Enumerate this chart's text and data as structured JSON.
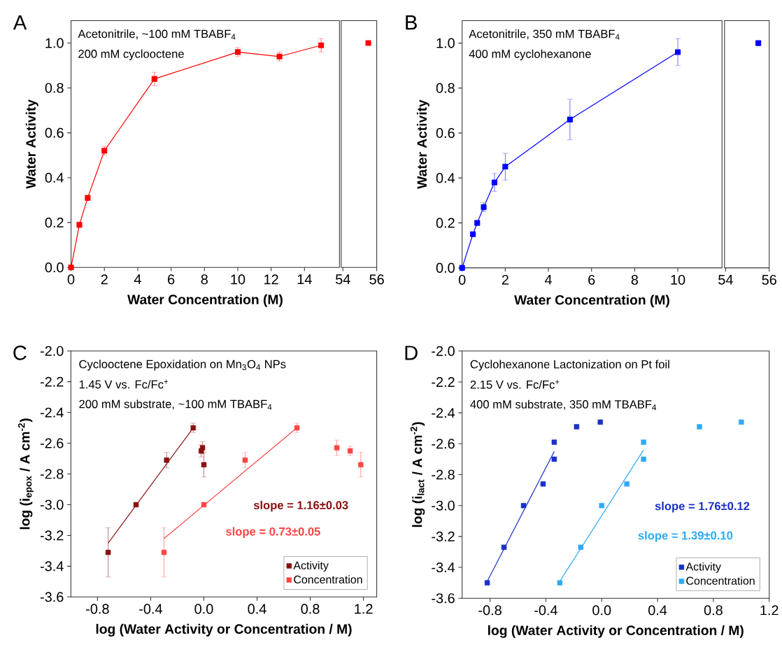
{
  "chart_data": [
    {
      "type": "line",
      "title": "A",
      "xlabel": "Water Concentration (M)",
      "ylabel": "Water Activity",
      "marker": "square",
      "grid": false,
      "xlim": [
        0,
        16.1
      ],
      "ylim": [
        0,
        1.1
      ],
      "xticks": [
        0,
        2,
        4,
        6,
        8,
        10,
        12,
        14
      ],
      "yticks": [
        {
          "value": 0,
          "label": "0.0"
        },
        0.2,
        0.4,
        0.6,
        0.8,
        {
          "value": 1,
          "label": "1.0"
        }
      ],
      "annotations": [
        "Acetonitrile, ~100 mM TBABF$_{4}$",
        "200 mM cyclooctene"
      ],
      "series": [
        {
          "color": "#ff0000",
          "x": [
            0,
            0.5,
            1,
            2,
            5,
            10,
            12.5,
            15
          ],
          "values": [
            0,
            0.19,
            0.31,
            0.52,
            0.84,
            0.96,
            0.94,
            0.99
          ],
          "errors": [
            null,
            null,
            0.01,
            0.02,
            0.03,
            0.02,
            0.02,
            0.03
          ]
        }
      ]
    },
    {
      "type": "line",
      "marker": "square",
      "grid": false,
      "tick_labels": "x",
      "xlim": [
        53.9,
        56
      ],
      "ylim": [
        0,
        1.1
      ],
      "xticks": [
        54,
        56
      ],
      "series": [
        {
          "color": "#ff0000",
          "x": [
            55.5
          ],
          "values": [
            1.0
          ]
        }
      ]
    },
    {
      "type": "line",
      "title": "B",
      "xlabel": "Water Concentration (M)",
      "ylabel": "Water Activity",
      "marker": "square",
      "grid": false,
      "xlim": [
        0,
        12.05
      ],
      "ylim": [
        0,
        1.1
      ],
      "xticks": [
        0,
        2,
        4,
        6,
        8,
        10
      ],
      "yticks": [
        {
          "value": 0,
          "label": "0.0"
        },
        0.2,
        0.4,
        0.6,
        0.8,
        {
          "value": 1,
          "label": "1.0"
        }
      ],
      "annotations": [
        "Acetonitrile, 350 mM TBABF$_{4}$",
        "400 mM cyclohexanone"
      ],
      "series": [
        {
          "color": "#0000ff",
          "x": [
            0,
            0.5,
            0.7,
            1,
            1.5,
            2,
            5,
            10
          ],
          "values": [
            0,
            0.15,
            0.2,
            0.27,
            0.38,
            0.45,
            0.66,
            0.96
          ],
          "errors": [
            null,
            null,
            null,
            0.02,
            0.04,
            0.06,
            0.09,
            0.06
          ]
        }
      ]
    },
    {
      "type": "line",
      "marker": "square",
      "grid": false,
      "tick_labels": "x",
      "xlim": [
        53.95,
        56
      ],
      "ylim": [
        0,
        1.1
      ],
      "xticks": [
        54,
        56
      ],
      "series": [
        {
          "color": "#0000ff",
          "x": [
            55.5
          ],
          "values": [
            1.0
          ]
        }
      ]
    },
    {
      "type": "scatter",
      "title": "C",
      "xlabel": "log (Water Activity or Concentration / M)",
      "ylabel": "log (i$_{epox}$ / A cm$^{-2}$)",
      "marker": "square",
      "grid": false,
      "legend": "bottom right",
      "xlim": [
        -1.0,
        1.3
      ],
      "ylim": [
        -3.6,
        -2.0
      ],
      "xticks": [
        -0.8,
        -0.4,
        {
          "value": 0,
          "label": "0.0"
        },
        0.4,
        0.8,
        1.2
      ],
      "yticks": [
        -3.6,
        -3.4,
        -3.2,
        {
          "value": -3,
          "label": "-3.0"
        },
        -2.8,
        -2.6,
        -2.4,
        -2.2,
        {
          "value": -2,
          "label": "-2.0"
        }
      ],
      "annotations": [
        "Cyclooctene Epoxidation on Mn$_{3}$O$_{4}$ NPs",
        "1.45 V vs. Fc/Fc$^{+}$",
        "200 mM substrate, ~100 mM TBABF$_{4}$",
        "slope = 1.16±0.03",
        "slope = 0.73±0.05"
      ],
      "series": [
        {
          "name": "Activity",
          "color": "#8b1010",
          "x": [
            -0.72,
            -0.51,
            -0.28,
            -0.08,
            -0.02,
            -0.01,
            0.0
          ],
          "values": [
            -3.31,
            -3.0,
            -2.71,
            -2.5,
            -2.65,
            -2.63,
            -2.74
          ],
          "errors": [
            0.16,
            null,
            0.05,
            0.03,
            0.04,
            0.04,
            0.08
          ]
        },
        {
          "name": "Concentration",
          "color": "#ff4444",
          "x": [
            -0.3,
            0.0,
            0.31,
            0.7,
            1.0,
            1.1,
            1.18
          ],
          "values": [
            -3.31,
            -3.0,
            -2.71,
            -2.5,
            -2.63,
            -2.65,
            -2.74
          ],
          "errors": [
            0.16,
            null,
            0.05,
            0.03,
            0.05,
            0.03,
            0.08
          ]
        },
        {
          "type": "line",
          "marker": "none",
          "color": "#8b1010",
          "x": [
            -0.72,
            -0.08
          ],
          "values": [
            -3.25,
            -2.5
          ]
        },
        {
          "type": "line",
          "marker": "none",
          "color": "#ff4444",
          "x": [
            -0.3,
            0.7
          ],
          "values": [
            -3.22,
            -2.5
          ]
        }
      ]
    },
    {
      "type": "scatter",
      "title": "D",
      "xlabel": "log (Water Activity or Concentration / M)",
      "ylabel": "log (i$_{lact}$ / A cm$^{-2}$)",
      "marker": "square",
      "grid": false,
      "legend": "bottom right",
      "xlim": [
        -1.0,
        1.2
      ],
      "ylim": [
        -3.6,
        -2.0
      ],
      "xticks": [
        -0.8,
        -0.4,
        {
          "value": 0,
          "label": "0.0"
        },
        0.4,
        0.8,
        1.2
      ],
      "yticks": [
        -3.6,
        -3.4,
        -3.2,
        {
          "value": -3,
          "label": "-3.0"
        },
        -2.8,
        -2.6,
        -2.4,
        -2.2,
        {
          "value": -2,
          "label": "-2.0"
        }
      ],
      "annotations": [
        "Cyclohexanone Lactonization on Pt foil",
        "2.15 V vs. Fc/Fc$^{+}$",
        "400 mM substrate, 350 mM TBABF$_{4}$",
        "slope = 1.76±0.12",
        "slope = 1.39±0.10"
      ],
      "series": [
        {
          "name": "Activity",
          "color": "#1a30c8",
          "x": [
            -0.82,
            -0.7,
            -0.56,
            -0.42,
            -0.34,
            -0.34,
            -0.18,
            -0.01
          ],
          "values": [
            -3.5,
            -3.27,
            -3.0,
            -2.86,
            -2.59,
            -2.7,
            -2.49,
            -2.46
          ]
        },
        {
          "name": "Concentration",
          "color": "#2eaaf5",
          "x": [
            -0.3,
            -0.15,
            0.0,
            0.18,
            0.3,
            0.3,
            0.7,
            1.0
          ],
          "values": [
            -3.5,
            -3.27,
            -3.0,
            -2.86,
            -2.59,
            -2.7,
            -2.49,
            -2.46
          ]
        },
        {
          "type": "line",
          "marker": "none",
          "color": "#1a30c8",
          "x": [
            -0.82,
            -0.34
          ],
          "values": [
            -3.49,
            -2.65
          ]
        },
        {
          "type": "line",
          "marker": "none",
          "color": "#2eaaf5",
          "x": [
            -0.3,
            0.3
          ],
          "values": [
            -3.49,
            -2.64
          ]
        }
      ]
    }
  ]
}
